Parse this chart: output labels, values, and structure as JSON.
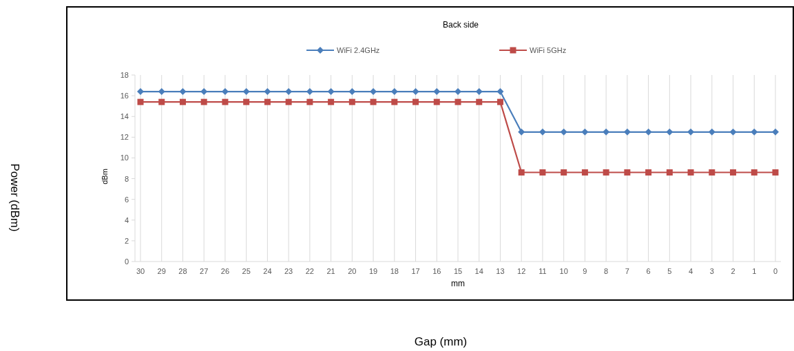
{
  "chart_data": {
    "type": "line",
    "title": "Back side",
    "xlabel": "mm",
    "ylabel": "dBm",
    "annotations": [
      "Power (dBm)",
      "Gap (mm)"
    ],
    "categories": [
      "30",
      "29",
      "28",
      "27",
      "26",
      "25",
      "24",
      "23",
      "22",
      "21",
      "20",
      "19",
      "18",
      "17",
      "16",
      "15",
      "14",
      "13",
      "12",
      "11",
      "10",
      "9",
      "8",
      "7",
      "6",
      "5",
      "4",
      "3",
      "2",
      "1",
      "0"
    ],
    "series": [
      {
        "name": "WiFi 2.4GHz",
        "color": "#4a7ebb",
        "marker": "diamond",
        "values": [
          16.4,
          16.4,
          16.4,
          16.4,
          16.4,
          16.4,
          16.4,
          16.4,
          16.4,
          16.4,
          16.4,
          16.4,
          16.4,
          16.4,
          16.4,
          16.4,
          16.4,
          16.4,
          12.5,
          12.5,
          12.5,
          12.5,
          12.5,
          12.5,
          12.5,
          12.5,
          12.5,
          12.5,
          12.5,
          12.5,
          12.5
        ]
      },
      {
        "name": "WiFi 5GHz",
        "color": "#be4b48",
        "marker": "square",
        "values": [
          15.4,
          15.4,
          15.4,
          15.4,
          15.4,
          15.4,
          15.4,
          15.4,
          15.4,
          15.4,
          15.4,
          15.4,
          15.4,
          15.4,
          15.4,
          15.4,
          15.4,
          15.4,
          8.6,
          8.6,
          8.6,
          8.6,
          8.6,
          8.6,
          8.6,
          8.6,
          8.6,
          8.6,
          8.6,
          8.6,
          8.6
        ]
      }
    ],
    "ylim": [
      0,
      18
    ],
    "yticks": [
      0,
      2,
      4,
      6,
      8,
      10,
      12,
      14,
      16,
      18
    ],
    "grid": "x",
    "legend": "top"
  }
}
